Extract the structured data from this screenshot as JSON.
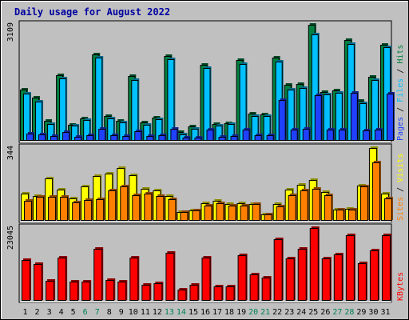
{
  "chart_data": {
    "title": "Daily usage for August 2022",
    "type": "bar",
    "x": [
      "1",
      "2",
      "3",
      "4",
      "5",
      "6",
      "7",
      "8",
      "9",
      "10",
      "11",
      "12",
      "13",
      "14",
      "15",
      "16",
      "17",
      "18",
      "19",
      "20",
      "21",
      "22",
      "23",
      "24",
      "25",
      "26",
      "27",
      "28",
      "29",
      "30",
      "31"
    ],
    "weekend_days": [
      "6",
      "7",
      "13",
      "14",
      "20",
      "21",
      "27",
      "28"
    ],
    "panels": [
      {
        "name": "top",
        "max_label": "3109",
        "ylim": [
          0,
          3109
        ],
        "side_labels": [
          "Pages",
          "Files",
          "Hits"
        ],
        "series": [
          {
            "name": "Hits",
            "color": "#008040",
            "values": [
              1360,
              1150,
              520,
              1750,
              420,
              590,
              2320,
              650,
              510,
              1720,
              470,
              610,
              2260,
              210,
              370,
              2020,
              430,
              460,
              2150,
              720,
              700,
              2220,
              1480,
              1520,
              3109,
              1300,
              1330,
              2700,
              1060,
              1710,
              2580
            ]
          },
          {
            "name": "Files",
            "color": "#00c0ff",
            "values": [
              1250,
              1040,
              440,
              1670,
              380,
              550,
              2230,
              590,
              470,
              1610,
              410,
              570,
              2180,
              160,
              310,
              1940,
              390,
              430,
              2050,
              650,
              640,
              2110,
              1360,
              1400,
              2860,
              1220,
              1280,
              2590,
              990,
              1630,
              2510
            ]
          },
          {
            "name": "Pages",
            "color": "#2040ff",
            "values": [
              180,
              150,
              110,
              220,
              90,
              140,
              300,
              130,
              110,
              230,
              100,
              130,
              300,
              60,
              70,
              280,
              90,
              100,
              280,
              130,
              120,
              1070,
              290,
              300,
              1210,
              280,
              280,
              1270,
              250,
              290,
              1250
            ]
          }
        ]
      },
      {
        "name": "mid",
        "max_label": "344",
        "ylim": [
          0,
          344
        ],
        "side_labels": [
          "Sites",
          "Visits"
        ],
        "series": [
          {
            "name": "Visits",
            "color": "#ffff00",
            "values": [
              125,
              115,
              200,
              145,
              105,
              160,
              210,
              220,
              250,
              215,
              150,
              140,
              115,
              40,
              45,
              80,
              90,
              75,
              80,
              75,
              25,
              75,
              145,
              170,
              190,
              135,
              50,
              55,
              165,
              344,
              125
            ]
          },
          {
            "name": "Sites",
            "color": "#ff8000",
            "values": [
              90,
              110,
              110,
              110,
              85,
              95,
              100,
              140,
              160,
              120,
              125,
              115,
              100,
              40,
              45,
              70,
              80,
              70,
              70,
              75,
              25,
              65,
              120,
              140,
              150,
              120,
              50,
              50,
              160,
              275,
              105
            ]
          }
        ]
      },
      {
        "name": "bottom",
        "max_label": "23045",
        "ylim": [
          0,
          23045
        ],
        "side_labels": [
          "KBytes"
        ],
        "series": [
          {
            "name": "KBytes",
            "color": "#ff0000",
            "values": [
              12800,
              11400,
              6200,
              13600,
              6000,
              5800,
              16300,
              6300,
              5800,
              13500,
              4800,
              5300,
              15200,
              3400,
              4800,
              13500,
              4300,
              4300,
              14400,
              8200,
              7200,
              19400,
              13300,
              16500,
              23045,
              13200,
              14500,
              20700,
              11800,
              15900,
              20800
            ]
          }
        ]
      }
    ]
  }
}
